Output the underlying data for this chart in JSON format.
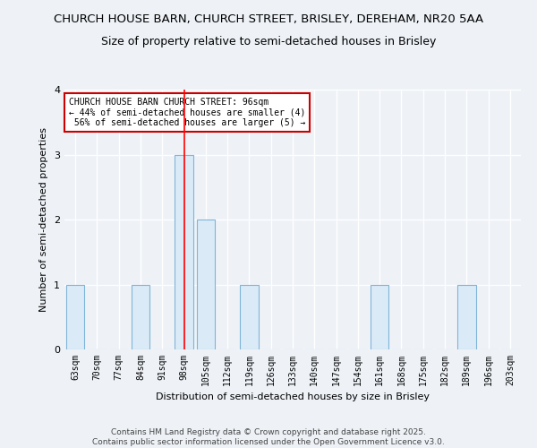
{
  "title_line1": "CHURCH HOUSE BARN, CHURCH STREET, BRISLEY, DEREHAM, NR20 5AA",
  "title_line2": "Size of property relative to semi-detached houses in Brisley",
  "xlabel": "Distribution of semi-detached houses by size in Brisley",
  "ylabel": "Number of semi-detached properties",
  "categories": [
    "63sqm",
    "70sqm",
    "77sqm",
    "84sqm",
    "91sqm",
    "98sqm",
    "105sqm",
    "112sqm",
    "119sqm",
    "126sqm",
    "133sqm",
    "140sqm",
    "147sqm",
    "154sqm",
    "161sqm",
    "168sqm",
    "175sqm",
    "182sqm",
    "189sqm",
    "196sqm",
    "203sqm"
  ],
  "values": [
    1,
    0,
    0,
    1,
    0,
    3,
    2,
    0,
    1,
    0,
    0,
    0,
    0,
    0,
    1,
    0,
    0,
    0,
    1,
    0,
    0
  ],
  "bar_color": "#daeaf7",
  "bar_edge_color": "#7fb4d8",
  "red_line_index": 5,
  "annotation_text": "CHURCH HOUSE BARN CHURCH STREET: 96sqm\n← 44% of semi-detached houses are smaller (4)\n 56% of semi-detached houses are larger (5) →",
  "annotation_box_color": "#ffffff",
  "annotation_box_edge_color": "#cc0000",
  "ylim": [
    0,
    4
  ],
  "yticks": [
    0,
    1,
    2,
    3,
    4
  ],
  "footer_line1": "Contains HM Land Registry data © Crown copyright and database right 2025.",
  "footer_line2": "Contains public sector information licensed under the Open Government Licence v3.0.",
  "bg_color": "#eef2f7",
  "plot_bg_color": "#eef2f7",
  "title_fontsize": 9.5,
  "subtitle_fontsize": 9,
  "axis_label_fontsize": 8,
  "tick_fontsize": 7,
  "footer_fontsize": 6.5,
  "annotation_fontsize": 7
}
